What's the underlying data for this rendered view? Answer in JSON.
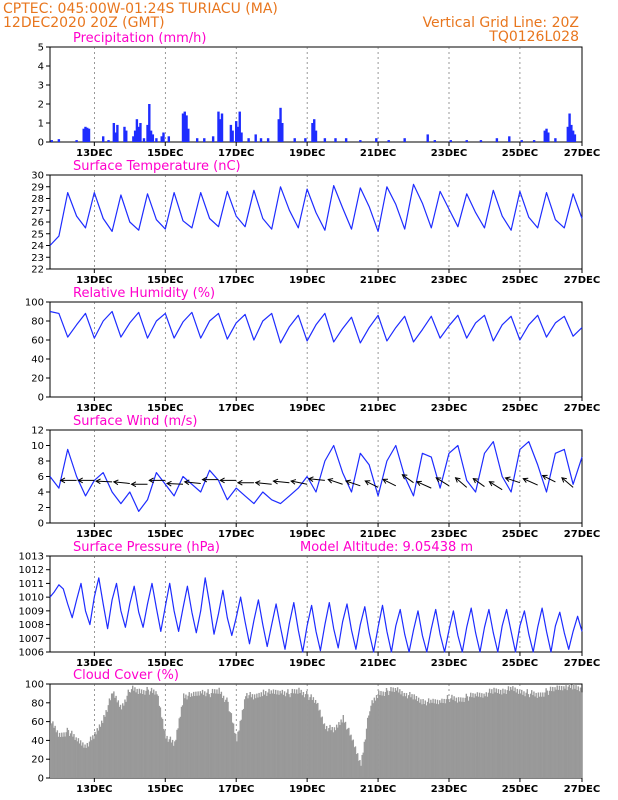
{
  "header": {
    "line1": "CPTEC:   045:00W-01:24S   TURIACU (MA)",
    "line2": "12DEC2020 20Z (GMT)",
    "grid_note": "Vertical Grid Line: 20Z",
    "code": "TQ0126L028"
  },
  "chart_data": [
    {
      "id": "precip",
      "type": "bar",
      "title": "Precipitation (mm/h)",
      "ylim": [
        0,
        5
      ],
      "yticks": [
        0,
        1,
        2,
        3,
        4,
        5
      ],
      "xticks": [
        "13DEC",
        "15DEC",
        "17DEC",
        "19DEC",
        "21DEC",
        "23DEC",
        "25DEC",
        "27DEC"
      ],
      "color": "#1e2cff",
      "bars": [
        [
          0.1,
          0.1
        ],
        [
          0.5,
          0.15
        ],
        [
          1.5,
          0.1
        ],
        [
          1.9,
          0.7
        ],
        [
          2.0,
          0.8
        ],
        [
          2.1,
          0.75
        ],
        [
          2.2,
          0.7
        ],
        [
          3.0,
          0.3
        ],
        [
          3.3,
          0.1
        ],
        [
          3.6,
          1.0
        ],
        [
          3.7,
          0.5
        ],
        [
          3.8,
          0.9
        ],
        [
          4.2,
          0.8
        ],
        [
          4.3,
          0.6
        ],
        [
          4.7,
          0.3
        ],
        [
          4.8,
          0.6
        ],
        [
          4.9,
          1.2
        ],
        [
          5.0,
          0.8
        ],
        [
          5.1,
          1.0
        ],
        [
          5.3,
          0.2
        ],
        [
          5.5,
          0.9
        ],
        [
          5.6,
          2.0
        ],
        [
          5.7,
          0.6
        ],
        [
          5.8,
          0.4
        ],
        [
          6.0,
          0.2
        ],
        [
          6.3,
          0.3
        ],
        [
          6.4,
          0.5
        ],
        [
          6.7,
          0.3
        ],
        [
          7.5,
          1.5
        ],
        [
          7.6,
          1.6
        ],
        [
          7.7,
          1.4
        ],
        [
          7.8,
          0.7
        ],
        [
          8.3,
          0.2
        ],
        [
          8.7,
          0.2
        ],
        [
          9.2,
          0.3
        ],
        [
          9.5,
          1.6
        ],
        [
          9.6,
          1.2
        ],
        [
          9.7,
          1.5
        ],
        [
          10.2,
          0.9
        ],
        [
          10.3,
          0.6
        ],
        [
          10.5,
          1.1
        ],
        [
          10.6,
          0.8
        ],
        [
          10.7,
          1.6
        ],
        [
          10.8,
          0.5
        ],
        [
          11.2,
          0.2
        ],
        [
          11.6,
          0.4
        ],
        [
          11.9,
          0.2
        ],
        [
          12.3,
          0.2
        ],
        [
          12.9,
          1.2
        ],
        [
          13.0,
          1.8
        ],
        [
          13.1,
          1.0
        ],
        [
          13.8,
          0.2
        ],
        [
          14.4,
          0.2
        ],
        [
          14.8,
          1.0
        ],
        [
          14.9,
          1.2
        ],
        [
          15.0,
          0.6
        ],
        [
          15.5,
          0.2
        ],
        [
          16.1,
          0.2
        ],
        [
          16.7,
          0.2
        ],
        [
          17.5,
          0.1
        ],
        [
          18.4,
          0.2
        ],
        [
          19.1,
          0.1
        ],
        [
          20.0,
          0.2
        ],
        [
          21.3,
          0.4
        ],
        [
          21.7,
          0.1
        ],
        [
          22.6,
          0.1
        ],
        [
          23.5,
          0.1
        ],
        [
          24.3,
          0.1
        ],
        [
          25.2,
          0.2
        ],
        [
          25.9,
          0.3
        ],
        [
          26.6,
          0.1
        ],
        [
          27.3,
          0.1
        ],
        [
          27.9,
          0.6
        ],
        [
          28.0,
          0.7
        ],
        [
          28.1,
          0.5
        ],
        [
          28.5,
          0.2
        ],
        [
          29.2,
          0.8
        ],
        [
          29.3,
          1.5
        ],
        [
          29.4,
          0.9
        ],
        [
          29.5,
          0.6
        ],
        [
          29.6,
          0.4
        ]
      ]
    },
    {
      "id": "temp",
      "type": "line",
      "title": "Surface Temperature (nC)",
      "ylim": [
        22,
        30
      ],
      "yticks": [
        22,
        23,
        24,
        25,
        26,
        27,
        28,
        29,
        30
      ],
      "xticks": [
        "13DEC",
        "15DEC",
        "17DEC",
        "19DEC",
        "21DEC",
        "23DEC",
        "25DEC",
        "27DEC"
      ],
      "color": "#1e2cff",
      "x": [
        0,
        0.5,
        1,
        1.5,
        2,
        2.5,
        3,
        3.5,
        4,
        4.5,
        5,
        5.5,
        6,
        6.5,
        7,
        7.5,
        8,
        8.5,
        9,
        9.5,
        10,
        10.5,
        11,
        11.5,
        12,
        12.5,
        13,
        13.5,
        14,
        14.5,
        15,
        15.5,
        16,
        16.5,
        17,
        17.5,
        18,
        18.5,
        19,
        19.5,
        20,
        20.5,
        21,
        21.5,
        22,
        22.5,
        23,
        23.5,
        24,
        24.5,
        25,
        25.5,
        26,
        26.5,
        27,
        27.5,
        28,
        28.5,
        29,
        29.5,
        30
      ],
      "y": [
        24.0,
        24.8,
        28.5,
        26.5,
        25.5,
        28.5,
        26.3,
        25.2,
        28.3,
        26.0,
        25.3,
        28.4,
        26.2,
        25.4,
        28.5,
        26.1,
        25.5,
        28.5,
        26.3,
        25.6,
        28.6,
        26.5,
        25.6,
        28.7,
        26.3,
        25.4,
        29.0,
        27.0,
        25.5,
        28.8,
        26.8,
        25.3,
        29.1,
        27.2,
        25.4,
        28.9,
        27.3,
        25.2,
        29.0,
        27.5,
        25.4,
        29.2,
        27.6,
        25.5,
        28.6,
        27.1,
        25.6,
        28.4,
        26.8,
        25.5,
        28.7,
        26.5,
        25.3,
        28.6,
        26.4,
        25.5,
        28.5,
        26.2,
        25.5,
        28.4,
        26.3
      ]
    },
    {
      "id": "rh",
      "type": "line",
      "title": "Relative Humidity (%)",
      "ylim": [
        0,
        100
      ],
      "yticks": [
        0,
        20,
        40,
        60,
        80,
        100
      ],
      "xticks": [
        "13DEC",
        "15DEC",
        "17DEC",
        "19DEC",
        "21DEC",
        "23DEC",
        "25DEC",
        "27DEC"
      ],
      "color": "#1e2cff",
      "x": [
        0,
        0.5,
        1,
        1.5,
        2,
        2.5,
        3,
        3.5,
        4,
        4.5,
        5,
        5.5,
        6,
        6.5,
        7,
        7.5,
        8,
        8.5,
        9,
        9.5,
        10,
        10.5,
        11,
        11.5,
        12,
        12.5,
        13,
        13.5,
        14,
        14.5,
        15,
        15.5,
        16,
        16.5,
        17,
        17.5,
        18,
        18.5,
        19,
        19.5,
        20,
        20.5,
        21,
        21.5,
        22,
        22.5,
        23,
        23.5,
        24,
        24.5,
        25,
        25.5,
        26,
        26.5,
        27,
        27.5,
        28,
        28.5,
        29,
        29.5,
        30
      ],
      "y": [
        90,
        88,
        63,
        76,
        88,
        62,
        80,
        90,
        63,
        78,
        89,
        62,
        80,
        88,
        62,
        79,
        89,
        62,
        80,
        88,
        61,
        78,
        87,
        60,
        80,
        88,
        57,
        74,
        86,
        59,
        76,
        88,
        58,
        72,
        84,
        57,
        73,
        86,
        59,
        73,
        85,
        58,
        71,
        85,
        62,
        75,
        86,
        62,
        78,
        86,
        59,
        76,
        85,
        60,
        76,
        86,
        63,
        78,
        85,
        64,
        73
      ]
    },
    {
      "id": "wind",
      "type": "line",
      "title": "Surface Wind (m/s)",
      "ylim": [
        0,
        12
      ],
      "yticks": [
        0,
        2,
        4,
        6,
        8,
        10,
        12
      ],
      "xticks": [
        "13DEC",
        "15DEC",
        "17DEC",
        "19DEC",
        "21DEC",
        "23DEC",
        "25DEC",
        "27DEC"
      ],
      "color": "#1e2cff",
      "x": [
        0,
        0.5,
        1,
        1.5,
        2,
        2.5,
        3,
        3.5,
        4,
        4.5,
        5,
        5.5,
        6,
        6.5,
        7,
        7.5,
        8,
        8.5,
        9,
        9.5,
        10,
        10.5,
        11,
        11.5,
        12,
        12.5,
        13,
        13.5,
        14,
        14.5,
        15,
        15.5,
        16,
        16.5,
        17,
        17.5,
        18,
        18.5,
        19,
        19.5,
        20,
        20.5,
        21,
        21.5,
        22,
        22.5,
        23,
        23.5,
        24,
        24.5,
        25,
        25.5,
        26,
        26.5,
        27,
        27.5,
        28,
        28.5,
        29,
        29.5,
        30
      ],
      "y": [
        6.0,
        4.5,
        9.5,
        6.0,
        3.5,
        5.5,
        6.5,
        4.0,
        2.5,
        4.0,
        1.5,
        3.0,
        6.5,
        5.0,
        3.5,
        6.0,
        5.0,
        4.0,
        6.8,
        5.5,
        3.0,
        4.5,
        3.5,
        2.5,
        4.0,
        3.0,
        2.5,
        3.5,
        4.5,
        6.0,
        4.0,
        8.0,
        10.0,
        6.5,
        4.0,
        9.0,
        7.5,
        3.5,
        8.0,
        10.0,
        6.0,
        3.5,
        9.0,
        8.5,
        4.5,
        9.0,
        10.0,
        5.5,
        4.0,
        9.0,
        10.5,
        6.0,
        4.0,
        9.5,
        10.5,
        7.5,
        4.0,
        9.0,
        9.5,
        5.0,
        8.5
      ],
      "arrows_x": [
        1.5,
        2.5,
        3.5,
        4.5,
        5.5,
        6.5,
        7.5,
        8.5,
        9.5,
        10.5,
        11.5,
        12.5,
        13.5,
        14.5,
        15.5,
        16.5,
        17.5,
        18.5,
        19.5,
        20.5,
        21.5,
        22.5,
        23.5,
        24.5,
        25.5,
        26.5,
        27.5,
        28.5,
        29.5
      ],
      "arrows_level": [
        5.5,
        5.5,
        5.3,
        5.1,
        5.0,
        5.5,
        5.0,
        5.1,
        5.6,
        5.5,
        5.2,
        5.0,
        5.2,
        5.0,
        5.5,
        5.0,
        4.8,
        4.6,
        4.8,
        5.2,
        4.5,
        4.8,
        4.6,
        4.7,
        4.3,
        5.2,
        4.9,
        5.3,
        4.6
      ],
      "arrows_u": [
        -1.0,
        -1.0,
        -1.0,
        -1.0,
        -1.0,
        -1.0,
        -1.0,
        -1.0,
        -1.0,
        -1.0,
        -1.0,
        -1.0,
        -1.0,
        -1.0,
        -1.0,
        -0.9,
        -0.9,
        -0.8,
        -0.8,
        -0.7,
        -0.9,
        -0.8,
        -0.7,
        -0.7,
        -0.8,
        -0.9,
        -0.9,
        -0.8,
        -0.7
      ],
      "arrows_v": [
        0.0,
        0.0,
        0.05,
        0.1,
        0.0,
        0.0,
        0.05,
        0.1,
        0.0,
        0.0,
        0.0,
        0.1,
        0.1,
        0.2,
        0.1,
        0.3,
        0.3,
        0.4,
        0.4,
        0.5,
        0.4,
        0.5,
        0.6,
        0.5,
        0.5,
        0.3,
        0.4,
        0.4,
        0.6
      ]
    },
    {
      "id": "pres",
      "type": "line",
      "title": "Surface Pressure (hPa)",
      "annotation": "Model Altitude: 9.05438 m",
      "ylim": [
        1006,
        1013
      ],
      "yticks": [
        1006,
        1007,
        1008,
        1009,
        1010,
        1011,
        1012,
        1013
      ],
      "xticks": [
        "13DEC",
        "15DEC",
        "17DEC",
        "19DEC",
        "21DEC",
        "23DEC",
        "25DEC",
        "27DEC"
      ],
      "color": "#1e2cff",
      "x": [
        0,
        0.25,
        0.5,
        0.75,
        1,
        1.25,
        1.5,
        1.75,
        2,
        2.25,
        2.5,
        2.75,
        3,
        3.25,
        3.5,
        3.75,
        4,
        4.25,
        4.5,
        4.75,
        5,
        5.25,
        5.5,
        5.75,
        6,
        6.25,
        6.5,
        6.75,
        7,
        7.25,
        7.5,
        7.75,
        8,
        8.25,
        8.5,
        8.75,
        9,
        9.25,
        9.5,
        9.75,
        10,
        10.25,
        10.5,
        10.75,
        11,
        11.25,
        11.5,
        11.75,
        12,
        12.25,
        12.5,
        12.75,
        13,
        13.25,
        13.5,
        13.75,
        14,
        14.25,
        14.5,
        14.75,
        15,
        15.25,
        15.5,
        15.75,
        16,
        16.25,
        16.5,
        16.75,
        17,
        17.25,
        17.5,
        17.75,
        18,
        18.25,
        18.5,
        18.75,
        19,
        19.25,
        19.5,
        19.75,
        20,
        20.25,
        20.5,
        20.75,
        21,
        21.25,
        21.5,
        21.75,
        22,
        22.25,
        22.5,
        22.75,
        23,
        23.25,
        23.5,
        23.75,
        24,
        24.25,
        24.5,
        24.75,
        25,
        25.25,
        25.5,
        25.75,
        26,
        26.25,
        26.5,
        26.75,
        27,
        27.25,
        27.5,
        27.75,
        28,
        28.25,
        28.5,
        28.75,
        29,
        29.25,
        29.5,
        29.75,
        30
      ],
      "y": [
        1010.0,
        1010.4,
        1010.9,
        1010.6,
        1009.5,
        1008.5,
        1009.8,
        1011.0,
        1009.0,
        1008.0,
        1010.0,
        1011.4,
        1009.5,
        1007.7,
        1009.8,
        1011.0,
        1009.0,
        1007.8,
        1009.5,
        1010.8,
        1008.9,
        1007.8,
        1009.5,
        1011.0,
        1009.2,
        1007.5,
        1009.3,
        1011.0,
        1009.0,
        1007.5,
        1009.2,
        1010.8,
        1008.9,
        1007.4,
        1009.0,
        1011.4,
        1009.5,
        1007.3,
        1008.8,
        1010.5,
        1008.5,
        1007.2,
        1008.5,
        1010.0,
        1008.2,
        1006.6,
        1008.3,
        1009.8,
        1008.0,
        1006.4,
        1008.0,
        1009.5,
        1007.8,
        1006.2,
        1008.1,
        1009.6,
        1007.6,
        1006.0,
        1007.9,
        1009.4,
        1007.5,
        1006.1,
        1008.0,
        1009.6,
        1007.7,
        1006.3,
        1008.2,
        1009.5,
        1007.6,
        1006.2,
        1008.0,
        1009.3,
        1007.4,
        1006.0,
        1007.8,
        1009.4,
        1007.5,
        1006.0,
        1007.9,
        1009.1,
        1007.3,
        1006.0,
        1007.6,
        1009.0,
        1007.2,
        1006.0,
        1007.7,
        1009.1,
        1007.3,
        1006.0,
        1007.6,
        1009.0,
        1007.2,
        1006.0,
        1007.8,
        1009.2,
        1007.4,
        1006.0,
        1007.8,
        1009.1,
        1007.4,
        1006.0,
        1007.9,
        1009.1,
        1007.5,
        1006.0,
        1007.9,
        1009.0,
        1007.3,
        1006.0,
        1007.8,
        1009.2,
        1007.5,
        1006.0,
        1007.9,
        1008.9,
        1007.4,
        1006.2,
        1007.5,
        1008.6,
        1007.5
      ]
    },
    {
      "id": "cloud",
      "type": "bar",
      "title": "Cloud Cover (%)",
      "ylim": [
        0,
        100
      ],
      "yticks": [
        0,
        20,
        40,
        60,
        80,
        100
      ],
      "xticks": [
        "13DEC",
        "15DEC",
        "17DEC",
        "19DEC",
        "21DEC",
        "23DEC",
        "25DEC",
        "27DEC"
      ],
      "color": "#999999",
      "x": [
        0,
        0.5,
        1,
        1.5,
        2,
        2.5,
        3,
        3.5,
        4,
        4.5,
        5,
        5.5,
        6,
        6.5,
        7,
        7.5,
        8,
        8.5,
        9,
        9.5,
        10,
        10.5,
        11,
        11.5,
        12,
        12.5,
        13,
        13.5,
        14,
        14.5,
        15,
        15.5,
        16,
        16.5,
        17,
        17.5,
        18,
        18.5,
        19,
        19.5,
        20,
        20.5,
        21,
        21.5,
        22,
        22.5,
        23,
        23.5,
        24,
        24.5,
        25,
        25.5,
        26,
        26.5,
        27,
        27.5,
        28,
        28.5,
        29,
        29.5,
        30
      ],
      "y": [
        60,
        45,
        50,
        40,
        35,
        45,
        65,
        90,
        75,
        95,
        92,
        93,
        90,
        45,
        35,
        88,
        87,
        92,
        90,
        93,
        80,
        40,
        90,
        85,
        92,
        90,
        92,
        90,
        93,
        88,
        80,
        55,
        50,
        65,
        40,
        15,
        75,
        90,
        92,
        94,
        90,
        85,
        82,
        80,
        82,
        85,
        83,
        86,
        88,
        90,
        92,
        93,
        94,
        92,
        90,
        88,
        92,
        95,
        98,
        96,
        95
      ]
    }
  ]
}
